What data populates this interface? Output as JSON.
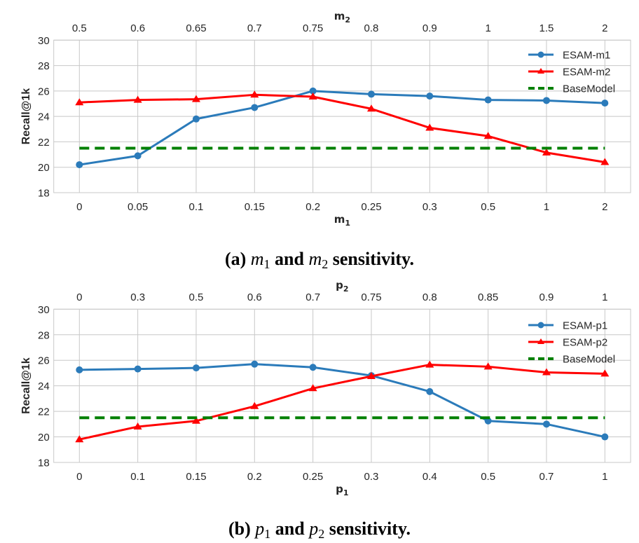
{
  "chart_data": [
    {
      "type": "line",
      "title": "",
      "caption": {
        "prefix": "(a)",
        "var1": "m",
        "sub1": "1",
        "mid": "and",
        "var2": "m",
        "sub2": "2",
        "suffix": "sensitivity."
      },
      "xlabel": "m1",
      "xlabel_top": "m2",
      "ylabel": "Recall@1k",
      "ylim": [
        18,
        30
      ],
      "yticks": [
        18,
        20,
        22,
        24,
        26,
        28,
        30
      ],
      "categories": [
        "0",
        "0.05",
        "0.1",
        "0.15",
        "0.2",
        "0.25",
        "0.3",
        "0.5",
        "1",
        "2"
      ],
      "categories_top": [
        "0.5",
        "0.6",
        "0.65",
        "0.7",
        "0.75",
        "0.8",
        "0.9",
        "1",
        "1.5",
        "2"
      ],
      "grid": true,
      "legend_position": "top-right",
      "series": [
        {
          "name": "ESAM-m1",
          "color": "#2b7bba",
          "marker": "circle",
          "style": "solid",
          "axis": "bottom",
          "values": [
            20.2,
            20.9,
            23.8,
            24.7,
            26.0,
            25.75,
            25.6,
            25.3,
            25.25,
            25.05
          ]
        },
        {
          "name": "ESAM-m2",
          "color": "#ff0000",
          "marker": "triangle",
          "style": "solid",
          "axis": "top",
          "values": [
            25.1,
            25.3,
            25.35,
            25.7,
            25.55,
            24.6,
            23.1,
            22.45,
            21.15,
            20.4
          ]
        },
        {
          "name": "BaseModel",
          "color": "#008000",
          "marker": "none",
          "style": "dashed",
          "axis": "bottom",
          "values": [
            21.5,
            21.5,
            21.5,
            21.5,
            21.5,
            21.5,
            21.5,
            21.5,
            21.5,
            21.5
          ]
        }
      ]
    },
    {
      "type": "line",
      "title": "",
      "caption": {
        "prefix": "(b)",
        "var1": "p",
        "sub1": "1",
        "mid": "and",
        "var2": "p",
        "sub2": "2",
        "suffix": "sensitivity."
      },
      "xlabel": "p1",
      "xlabel_top": "p2",
      "ylabel": "Recall@1k",
      "ylim": [
        18,
        30
      ],
      "yticks": [
        18,
        20,
        22,
        24,
        26,
        28,
        30
      ],
      "categories": [
        "0",
        "0.1",
        "0.15",
        "0.2",
        "0.25",
        "0.3",
        "0.4",
        "0.5",
        "0.7",
        "1"
      ],
      "categories_top": [
        "0",
        "0.3",
        "0.5",
        "0.6",
        "0.7",
        "0.75",
        "0.8",
        "0.85",
        "0.9",
        "1"
      ],
      "grid": true,
      "legend_position": "top-right",
      "series": [
        {
          "name": "ESAM-p1",
          "color": "#2b7bba",
          "marker": "circle",
          "style": "solid",
          "axis": "bottom",
          "values": [
            25.25,
            25.32,
            25.4,
            25.7,
            25.45,
            24.8,
            23.55,
            21.25,
            21.0,
            20.0
          ]
        },
        {
          "name": "ESAM-p2",
          "color": "#ff0000",
          "marker": "triangle",
          "style": "solid",
          "axis": "top",
          "values": [
            19.8,
            20.8,
            21.25,
            22.4,
            23.8,
            24.75,
            25.65,
            25.5,
            25.05,
            24.95
          ]
        },
        {
          "name": "BaseModel",
          "color": "#008000",
          "marker": "none",
          "style": "dashed",
          "axis": "bottom",
          "values": [
            21.5,
            21.5,
            21.5,
            21.5,
            21.5,
            21.5,
            21.5,
            21.5,
            21.5,
            21.5
          ]
        }
      ]
    }
  ]
}
